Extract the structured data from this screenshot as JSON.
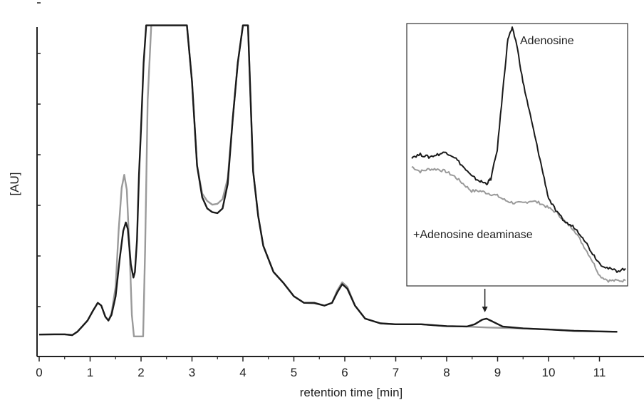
{
  "chart_data": {
    "type": "line",
    "xlabel": "retention time [min]",
    "ylabel": "[AU]",
    "xlim": [
      0,
      11.35
    ],
    "x_ticks": [
      "0",
      "1",
      "2",
      "3",
      "4",
      "5",
      "6",
      "7",
      "8",
      "9",
      "10",
      "11"
    ],
    "grid": false,
    "colors": {
      "sample": "#1a1a1a",
      "deaminase": "#9a9a9a"
    },
    "series": [
      {
        "color": "#1a1a1a",
        "points": [
          [
            0,
            0.045
          ],
          [
            0.3,
            0.046
          ],
          [
            0.5,
            0.046
          ],
          [
            0.65,
            0.042
          ],
          [
            0.75,
            0.06
          ],
          [
            0.85,
            0.09
          ],
          [
            0.95,
            0.12
          ],
          [
            1.05,
            0.17
          ],
          [
            1.15,
            0.215
          ],
          [
            1.22,
            0.2
          ],
          [
            1.3,
            0.14
          ],
          [
            1.36,
            0.12
          ],
          [
            1.42,
            0.15
          ],
          [
            1.5,
            0.25
          ],
          [
            1.58,
            0.45
          ],
          [
            1.65,
            0.6
          ],
          [
            1.7,
            0.645
          ],
          [
            1.74,
            0.61
          ],
          [
            1.8,
            0.42
          ],
          [
            1.85,
            0.35
          ],
          [
            1.88,
            0.38
          ],
          [
            1.92,
            0.55
          ],
          [
            1.96,
            0.9
          ],
          [
            2.0,
            1.15
          ],
          [
            2.05,
            1.5
          ],
          [
            2.1,
            1.7
          ],
          [
            2.9,
            1.7
          ],
          [
            3.0,
            1.4
          ],
          [
            3.1,
            0.95
          ],
          [
            3.2,
            0.78
          ],
          [
            3.3,
            0.72
          ],
          [
            3.4,
            0.7
          ],
          [
            3.5,
            0.695
          ],
          [
            3.6,
            0.72
          ],
          [
            3.7,
            0.85
          ],
          [
            3.8,
            1.2
          ],
          [
            3.9,
            1.5
          ],
          [
            4.0,
            1.7
          ],
          [
            4.1,
            1.7
          ],
          [
            4.2,
            0.92
          ],
          [
            4.3,
            0.68
          ],
          [
            4.4,
            0.52
          ],
          [
            4.6,
            0.38
          ],
          [
            4.8,
            0.32
          ],
          [
            5.0,
            0.25
          ],
          [
            5.2,
            0.215
          ],
          [
            5.4,
            0.215
          ],
          [
            5.6,
            0.2
          ],
          [
            5.75,
            0.215
          ],
          [
            5.85,
            0.27
          ],
          [
            5.95,
            0.315
          ],
          [
            6.05,
            0.29
          ],
          [
            6.2,
            0.2
          ],
          [
            6.4,
            0.13
          ],
          [
            6.7,
            0.105
          ],
          [
            7.0,
            0.1
          ],
          [
            7.5,
            0.1
          ],
          [
            8.0,
            0.09
          ],
          [
            8.4,
            0.088
          ],
          [
            8.55,
            0.1
          ],
          [
            8.7,
            0.125
          ],
          [
            8.78,
            0.13
          ],
          [
            8.9,
            0.115
          ],
          [
            9.1,
            0.088
          ],
          [
            9.5,
            0.078
          ],
          [
            10.0,
            0.072
          ],
          [
            10.5,
            0.065
          ],
          [
            11.0,
            0.062
          ],
          [
            11.35,
            0.06
          ]
        ]
      },
      {
        "color": "#9a9a9a",
        "points": [
          [
            0,
            0.045
          ],
          [
            0.3,
            0.046
          ],
          [
            0.5,
            0.046
          ],
          [
            0.65,
            0.042
          ],
          [
            0.75,
            0.06
          ],
          [
            0.85,
            0.09
          ],
          [
            0.95,
            0.12
          ],
          [
            1.05,
            0.17
          ],
          [
            1.15,
            0.215
          ],
          [
            1.22,
            0.2
          ],
          [
            1.3,
            0.14
          ],
          [
            1.36,
            0.12
          ],
          [
            1.42,
            0.16
          ],
          [
            1.5,
            0.3
          ],
          [
            1.56,
            0.6
          ],
          [
            1.62,
            0.83
          ],
          [
            1.67,
            0.9
          ],
          [
            1.72,
            0.82
          ],
          [
            1.78,
            0.45
          ],
          [
            1.82,
            0.15
          ],
          [
            1.86,
            0.035
          ],
          [
            1.9,
            0.035
          ],
          [
            2.0,
            0.035
          ],
          [
            2.04,
            0.035
          ],
          [
            2.08,
            0.5
          ],
          [
            2.13,
            1.3
          ],
          [
            2.2,
            1.7
          ],
          [
            2.9,
            1.7
          ],
          [
            3.0,
            1.4
          ],
          [
            3.1,
            0.95
          ],
          [
            3.2,
            0.8
          ],
          [
            3.3,
            0.76
          ],
          [
            3.4,
            0.74
          ],
          [
            3.5,
            0.745
          ],
          [
            3.6,
            0.77
          ],
          [
            3.7,
            0.88
          ],
          [
            3.8,
            1.2
          ],
          [
            3.9,
            1.5
          ],
          [
            4.0,
            1.7
          ],
          [
            4.1,
            1.7
          ],
          [
            4.2,
            0.92
          ],
          [
            4.3,
            0.68
          ],
          [
            4.4,
            0.52
          ],
          [
            4.6,
            0.38
          ],
          [
            4.8,
            0.32
          ],
          [
            5.0,
            0.25
          ],
          [
            5.2,
            0.215
          ],
          [
            5.4,
            0.212
          ],
          [
            5.6,
            0.2
          ],
          [
            5.75,
            0.215
          ],
          [
            5.85,
            0.28
          ],
          [
            5.95,
            0.325
          ],
          [
            6.05,
            0.3
          ],
          [
            6.2,
            0.2
          ],
          [
            6.4,
            0.13
          ],
          [
            6.7,
            0.105
          ],
          [
            7.0,
            0.1
          ],
          [
            7.5,
            0.1
          ],
          [
            8.0,
            0.09
          ],
          [
            8.4,
            0.088
          ],
          [
            8.6,
            0.085
          ],
          [
            8.8,
            0.083
          ],
          [
            9.2,
            0.08
          ],
          [
            9.5,
            0.078
          ],
          [
            10.0,
            0.072
          ],
          [
            10.5,
            0.065
          ],
          [
            11.0,
            0.062
          ],
          [
            11.35,
            0.06
          ]
        ]
      }
    ],
    "annotation_arrow_x": 8.75,
    "inset": {
      "labels": [
        "Adenosine",
        "+Adenosine deaminase"
      ],
      "series": [
        {
          "color": "#1a1a1a",
          "points": [
            [
              0,
              0.47
            ],
            [
              0.04,
              0.48
            ],
            [
              0.08,
              0.47
            ],
            [
              0.12,
              0.48
            ],
            [
              0.16,
              0.49
            ],
            [
              0.2,
              0.47
            ],
            [
              0.24,
              0.43
            ],
            [
              0.28,
              0.39
            ],
            [
              0.32,
              0.37
            ],
            [
              0.35,
              0.36
            ],
            [
              0.37,
              0.38
            ],
            [
              0.4,
              0.5
            ],
            [
              0.43,
              0.78
            ],
            [
              0.45,
              0.96
            ],
            [
              0.47,
              1.0
            ],
            [
              0.49,
              0.94
            ],
            [
              0.52,
              0.78
            ],
            [
              0.55,
              0.66
            ],
            [
              0.58,
              0.54
            ],
            [
              0.61,
              0.42
            ],
            [
              0.64,
              0.3
            ],
            [
              0.68,
              0.24
            ],
            [
              0.72,
              0.2
            ],
            [
              0.76,
              0.18
            ],
            [
              0.8,
              0.14
            ],
            [
              0.84,
              0.08
            ],
            [
              0.88,
              0.03
            ],
            [
              0.92,
              0.01
            ],
            [
              0.96,
              0.0
            ],
            [
              1.0,
              0.01
            ]
          ]
        },
        {
          "color": "#9a9a9a",
          "points": [
            [
              0,
              0.43
            ],
            [
              0.04,
              0.41
            ],
            [
              0.08,
              0.42
            ],
            [
              0.12,
              0.42
            ],
            [
              0.16,
              0.41
            ],
            [
              0.2,
              0.39
            ],
            [
              0.24,
              0.36
            ],
            [
              0.28,
              0.33
            ],
            [
              0.32,
              0.33
            ],
            [
              0.36,
              0.32
            ],
            [
              0.4,
              0.31
            ],
            [
              0.44,
              0.29
            ],
            [
              0.48,
              0.28
            ],
            [
              0.52,
              0.28
            ],
            [
              0.56,
              0.29
            ],
            [
              0.6,
              0.28
            ],
            [
              0.64,
              0.26
            ],
            [
              0.68,
              0.24
            ],
            [
              0.72,
              0.2
            ],
            [
              0.76,
              0.17
            ],
            [
              0.8,
              0.11
            ],
            [
              0.84,
              0.05
            ],
            [
              0.88,
              -0.02
            ],
            [
              0.92,
              -0.04
            ],
            [
              0.96,
              -0.04
            ],
            [
              1.0,
              -0.04
            ]
          ]
        }
      ]
    }
  }
}
